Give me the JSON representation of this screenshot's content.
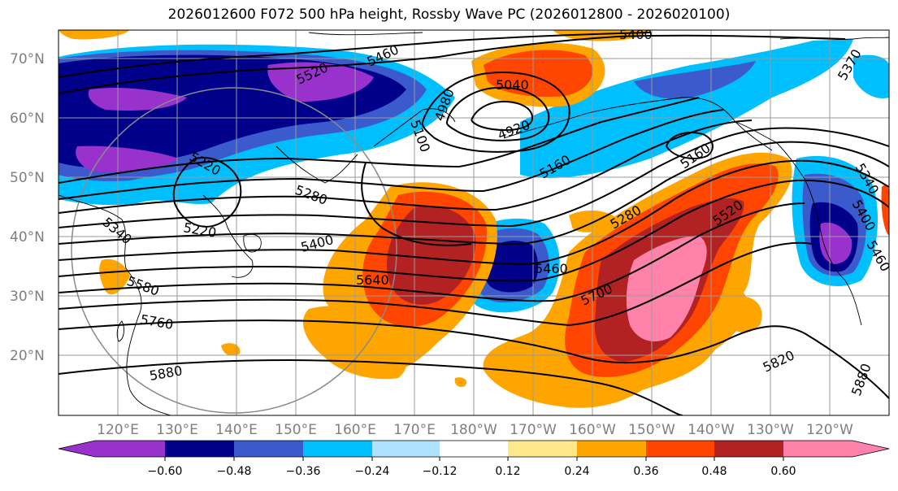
{
  "title": "2026012600 F072 500 hPa height, Rossby Wave PC (2026012800 - 2026020100)",
  "lat_labels": [
    "70°N",
    "60°N",
    "50°N",
    "40°N",
    "30°N",
    "20°N"
  ],
  "lon_labels": [
    "120°E",
    "130°E",
    "140°E",
    "150°E",
    "160°E",
    "170°E",
    "180°W",
    "170°W",
    "160°W",
    "150°W",
    "140°W",
    "130°W",
    "120°W"
  ],
  "contour_labels": [
    "5400",
    "5520",
    "5460",
    "5040",
    "5220",
    "4920",
    "4980",
    "5100",
    "5160",
    "5160",
    "5280",
    "5220",
    "5340",
    "5400",
    "5280",
    "5520",
    "5460",
    "5580",
    "5640",
    "5700",
    "5760",
    "5880",
    "5820",
    "5880",
    "5460",
    "5400",
    "5340",
    "5370"
  ],
  "colorbar": {
    "colors": [
      "#9932cc",
      "#00008b",
      "#3b5bcd",
      "#00bfff",
      "#b0e2ff",
      "#ffffff",
      "#ffe78b",
      "#ffa500",
      "#ff4500",
      "#b22222",
      "#ff82ab"
    ],
    "ticks": [
      "−0.60",
      "−0.48",
      "−0.36",
      "−0.24",
      "−0.12",
      "0.12",
      "0.24",
      "0.36",
      "0.48",
      "0.60"
    ]
  }
}
